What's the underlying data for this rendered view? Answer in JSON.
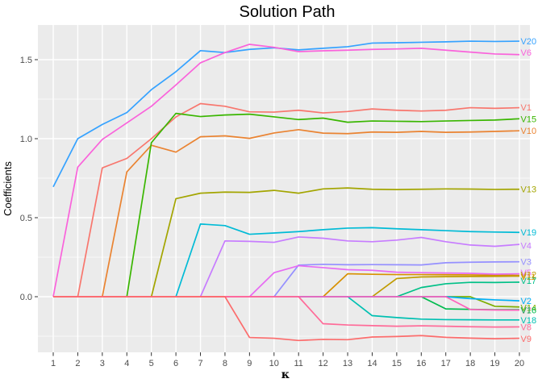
{
  "title": "Solution Path",
  "y_axis": {
    "label": "Coefficients",
    "ticks": [
      {
        "label": "0.0",
        "value": 0.0
      },
      {
        "label": "0.5",
        "value": 0.5
      },
      {
        "label": "1.0",
        "value": 1.0
      },
      {
        "label": "1.5",
        "value": 1.5
      }
    ],
    "minor_grid_values": [
      -0.25,
      0.25,
      0.75,
      1.25
    ]
  },
  "x_axis": {
    "label": "κ",
    "ticks": [
      1,
      2,
      3,
      4,
      5,
      6,
      7,
      8,
      9,
      10,
      11,
      12,
      13,
      14,
      15,
      16,
      17,
      18,
      19,
      20
    ]
  },
  "panel": {
    "bg_color": "#EBEBEB",
    "grid_color": "#FFFFFF",
    "tick_color": "#333333",
    "tick_label_color": "#4D4D4D"
  },
  "chart_data": {
    "type": "line",
    "title": "Solution Path",
    "xlabel": "κ",
    "ylabel": "Coefficients",
    "x": [
      1,
      2,
      3,
      4,
      5,
      6,
      7,
      8,
      9,
      10,
      11,
      12,
      13,
      14,
      15,
      16,
      17,
      18,
      19,
      20
    ],
    "xlim": [
      1,
      20
    ],
    "ylim": [
      -0.35,
      1.72
    ],
    "grid": true,
    "legend_position": "direct-labels-right",
    "label_draw_order": [
      "V20",
      "V6",
      "V1",
      "V15",
      "V10",
      "V13",
      "V19",
      "V4",
      "V3",
      "V5",
      "V11",
      "V12",
      "V17",
      "V2",
      "V14",
      "V7",
      "V16",
      "V18",
      "V8",
      "V9"
    ],
    "series": [
      {
        "name": "V1",
        "color": "#F8766D",
        "label_value": 1.2,
        "values": [
          0,
          0,
          0.815,
          0.875,
          1.0,
          1.138,
          1.222,
          1.205,
          1.17,
          1.168,
          1.18,
          1.163,
          1.172,
          1.188,
          1.18,
          1.175,
          1.18,
          1.196,
          1.192,
          1.196
        ]
      },
      {
        "name": "V10",
        "color": "#EA8331",
        "label_value": 1.05,
        "values": [
          0,
          0,
          0,
          0.79,
          0.958,
          0.915,
          1.012,
          1.018,
          1.002,
          1.036,
          1.057,
          1.035,
          1.032,
          1.042,
          1.04,
          1.046,
          1.04,
          1.042,
          1.046,
          1.05
        ]
      },
      {
        "name": "V11",
        "color": "#D89000",
        "label_value": 0.128,
        "values": [
          0,
          0,
          0,
          0,
          0,
          0,
          0,
          0,
          0,
          0,
          0,
          0,
          0.145,
          0.142,
          0.14,
          0.14,
          0.139,
          0.138,
          0.136,
          0.135
        ]
      },
      {
        "name": "V12",
        "color": "#C09B00",
        "label_value": 0.14,
        "values": [
          0,
          0,
          0,
          0,
          0,
          0,
          0,
          0,
          0,
          0,
          0,
          0,
          0,
          0,
          0.115,
          0.125,
          0.127,
          0.128,
          0.129,
          0.13
        ]
      },
      {
        "name": "V13",
        "color": "#A3A500",
        "label_value": 0.68,
        "values": [
          0,
          0,
          0,
          0,
          0,
          0.62,
          0.655,
          0.662,
          0.66,
          0.673,
          0.655,
          0.682,
          0.688,
          0.68,
          0.678,
          0.68,
          0.682,
          0.681,
          0.679,
          0.68
        ]
      },
      {
        "name": "V14",
        "color": "#7CAE00",
        "label_value": -0.068,
        "values": [
          0,
          0,
          0,
          0,
          0,
          0,
          0,
          0,
          0,
          0,
          0,
          0,
          0,
          0,
          0,
          0,
          0,
          0,
          -0.061,
          -0.065
        ]
      },
      {
        "name": "V15",
        "color": "#39B600",
        "label_value": 1.126,
        "values": [
          0,
          0,
          0,
          0,
          0.975,
          1.16,
          1.14,
          1.15,
          1.155,
          1.138,
          1.121,
          1.13,
          1.104,
          1.112,
          1.11,
          1.108,
          1.112,
          1.115,
          1.118,
          1.126
        ]
      },
      {
        "name": "V16",
        "color": "#00BB4E",
        "label_value": -0.083,
        "values": [
          0,
          0,
          0,
          0,
          0,
          0,
          0,
          0,
          0,
          0,
          0,
          0,
          0,
          0,
          0,
          0,
          -0.077,
          -0.08,
          -0.082,
          -0.082
        ]
      },
      {
        "name": "V17",
        "color": "#00C087",
        "label_value": 0.103,
        "values": [
          0,
          0,
          0,
          0,
          0,
          0,
          0,
          0,
          0,
          0,
          0,
          0,
          0,
          0,
          0,
          0.058,
          0.082,
          0.091,
          0.09,
          0.092
        ]
      },
      {
        "name": "V18",
        "color": "#00C0B2",
        "label_value": -0.148,
        "values": [
          0,
          0,
          0,
          0,
          0,
          0,
          0,
          0,
          0,
          0,
          0,
          0,
          0,
          -0.12,
          -0.132,
          -0.142,
          -0.145,
          -0.146,
          -0.147,
          -0.147
        ]
      },
      {
        "name": "V19",
        "color": "#00BBD6",
        "label_value": 0.407,
        "values": [
          0,
          0,
          0,
          0,
          0,
          0,
          0.46,
          0.45,
          0.395,
          0.403,
          0.412,
          0.424,
          0.434,
          0.437,
          0.43,
          0.424,
          0.418,
          0.412,
          0.409,
          0.407
        ]
      },
      {
        "name": "V2",
        "color": "#00B0F6",
        "label_value": -0.026,
        "values": [
          0,
          0,
          0,
          0,
          0,
          0,
          0,
          0,
          0,
          0,
          0,
          0,
          0,
          0,
          0,
          0,
          0,
          -0.012,
          -0.02,
          -0.026
        ]
      },
      {
        "name": "V20",
        "color": "#35A2FF",
        "label_value": 1.617,
        "values": [
          0.695,
          1.0,
          1.09,
          1.165,
          1.31,
          1.424,
          1.557,
          1.545,
          1.565,
          1.575,
          1.562,
          1.572,
          1.582,
          1.605,
          1.607,
          1.61,
          1.613,
          1.617,
          1.615,
          1.617
        ]
      },
      {
        "name": "V3",
        "color": "#9590FF",
        "label_value": 0.221,
        "values": [
          0,
          0,
          0,
          0,
          0,
          0,
          0,
          0,
          0,
          0,
          0.2,
          0.205,
          0.202,
          0.203,
          0.202,
          0.201,
          0.215,
          0.218,
          0.22,
          0.221
        ]
      },
      {
        "name": "V4",
        "color": "#C77CFF",
        "label_value": 0.325,
        "values": [
          0,
          0,
          0,
          0,
          0,
          0,
          0,
          0.353,
          0.35,
          0.344,
          0.378,
          0.37,
          0.353,
          0.348,
          0.358,
          0.375,
          0.348,
          0.327,
          0.319,
          0.331
        ]
      },
      {
        "name": "V5",
        "color": "#E76BF3",
        "label_value": 0.153,
        "values": [
          0,
          0,
          0,
          0,
          0,
          0,
          0,
          0,
          0,
          0.152,
          0.196,
          0.184,
          0.171,
          0.167,
          0.155,
          0.152,
          0.15,
          0.148,
          0.143,
          0.145
        ]
      },
      {
        "name": "V6",
        "color": "#FA62DB",
        "label_value": 1.545,
        "values": [
          0,
          0.82,
          0.995,
          1.1,
          1.205,
          1.34,
          1.48,
          1.545,
          1.597,
          1.578,
          1.551,
          1.556,
          1.56,
          1.565,
          1.568,
          1.572,
          1.56,
          1.548,
          1.536,
          1.532
        ]
      },
      {
        "name": "V7",
        "color": "#FF62BC",
        "label_value": -0.088,
        "values": [
          0,
          0,
          0,
          0,
          0,
          0,
          0,
          0,
          0,
          0,
          0,
          0,
          0,
          0,
          0,
          0,
          0,
          -0.081,
          -0.084,
          -0.085
        ]
      },
      {
        "name": "V8",
        "color": "#FF6A98",
        "label_value": -0.192,
        "values": [
          0,
          0,
          0,
          0,
          0,
          0,
          0,
          0,
          0,
          0,
          0,
          -0.171,
          -0.179,
          -0.183,
          -0.187,
          -0.184,
          -0.187,
          -0.19,
          -0.192,
          -0.191
        ]
      },
      {
        "name": "V9",
        "color": "#FC6C6C",
        "label_value": -0.266,
        "values": [
          0,
          0,
          0,
          0,
          0,
          0,
          0,
          0,
          -0.258,
          -0.263,
          -0.277,
          -0.27,
          -0.272,
          -0.255,
          -0.252,
          -0.246,
          -0.257,
          -0.262,
          -0.266,
          -0.263
        ]
      }
    ]
  }
}
